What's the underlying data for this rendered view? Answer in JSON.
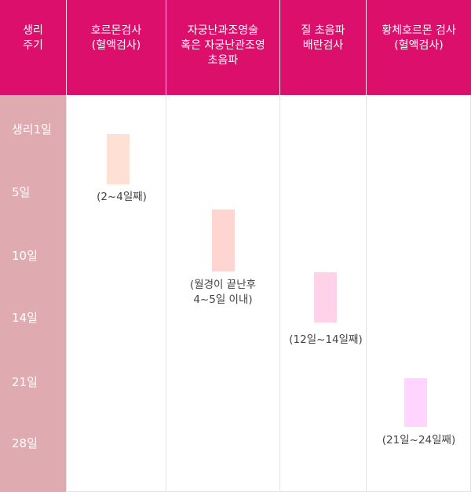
{
  "header": {
    "period": "생리\n주기",
    "hormone": "호르몬검사\n(혈액검사)",
    "hsg": "자궁난과조영술\n혹은 자궁난관조영\n초음파",
    "ultrasound": "질 초음파\n배란검사",
    "progesterone": "황체호르몬 검사\n(혈액검사)"
  },
  "periods": [
    "생리1일",
    "5일",
    "10일",
    "14일",
    "21일",
    "28일"
  ],
  "tests": {
    "hormone": {
      "note": "(2~4일째)",
      "color": "#ffe0d4"
    },
    "hsg": {
      "note": "(월경이 끝난후\n4~5일 이내)",
      "color": "#ffd5d2"
    },
    "ultrasound": {
      "note": "(12일~14일째)",
      "color": "#ffd2ea"
    },
    "progesterone": {
      "note": "(21일~24일째)",
      "color": "#ffd5ff"
    }
  },
  "colors": {
    "header_bg": "#dd0f6d",
    "period_bg": "#e0aab1",
    "grid": "#e2e2e2"
  }
}
